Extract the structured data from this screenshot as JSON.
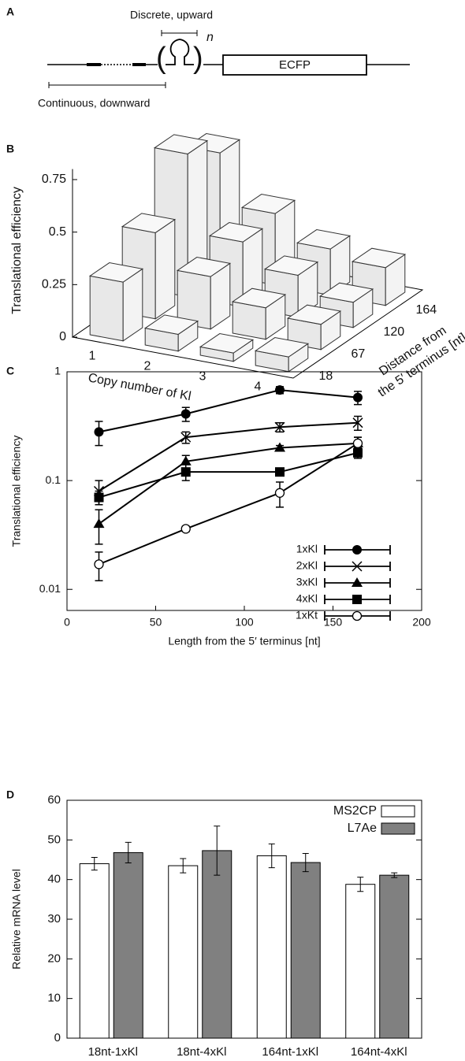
{
  "diagram": {
    "label": "A",
    "top_label": "Discrete, upward",
    "bottom_label": "Continuous, downward",
    "exponent": "n",
    "box_label": "ECFP"
  },
  "chart_data": [
    {
      "type": "bar3d",
      "panel_label": "B",
      "zlabel": "Translational efficiency",
      "xlabel": "Copy number of Kl",
      "depth_label": [
        "Distance from",
        "the 5′ terminus [nt]"
      ],
      "categories": [
        "1",
        "2",
        "3",
        "4"
      ],
      "color": "#e8e8e8",
      "series": [
        {
          "name": "18",
          "values": [
            0.28,
            0.08,
            0.04,
            0.07
          ]
        },
        {
          "name": "67",
          "values": [
            0.41,
            0.25,
            0.15,
            0.12
          ]
        },
        {
          "name": "120",
          "values": [
            0.68,
            0.31,
            0.2,
            0.12
          ]
        },
        {
          "name": "164",
          "values": [
            0.58,
            0.34,
            0.22,
            0.18
          ]
        }
      ],
      "zlim": [
        0,
        0.8
      ],
      "zticks": [
        0,
        0.25,
        0.5,
        0.75
      ]
    },
    {
      "type": "line",
      "panel_label": "C",
      "xlabel": "Length from the 5′ terminus [nt]",
      "ylabel": "Translational efficiency",
      "x": [
        18,
        67,
        120,
        164
      ],
      "log_y": true,
      "xlim": [
        0,
        200
      ],
      "xticks": [
        0,
        50,
        100,
        150,
        200
      ],
      "ylim": [
        0.0064,
        1
      ],
      "yticks": [
        0.01,
        0.1,
        1
      ],
      "series": [
        {
          "name": "1xKl",
          "color": "#000000",
          "marker": "circle",
          "values": [
            0.28,
            0.41,
            0.68,
            0.58
          ],
          "errors": [
            0.07,
            0.06,
            0.05,
            0.08
          ]
        },
        {
          "name": "2xKl",
          "color": "#000000",
          "marker": "cross",
          "values": [
            0.08,
            0.25,
            0.31,
            0.34
          ],
          "errors": [
            0.02,
            0.03,
            0.03,
            0.05
          ]
        },
        {
          "name": "3xKl",
          "color": "#000000",
          "marker": "triangle",
          "values": [
            0.04,
            0.15,
            0.2,
            0.22
          ],
          "errors": [
            0.014,
            0.02,
            0.01,
            0.03
          ]
        },
        {
          "name": "4xKl",
          "color": "#000000",
          "marker": "square",
          "values": [
            0.07,
            0.12,
            0.12,
            0.18
          ],
          "errors": [
            0.01,
            0.02,
            0.005,
            0.02
          ]
        },
        {
          "name": "1xKt",
          "color": "#000000",
          "marker": "open-circle",
          "values": [
            0.017,
            0.036,
            0.077,
            0.22
          ],
          "errors": [
            0.005,
            0.002,
            0.02,
            0.03
          ]
        }
      ],
      "legend": "lower-right"
    },
    {
      "type": "bar",
      "panel_label": "D",
      "ylabel": "Relative mRNA level",
      "categories": [
        "18nt-1xKl",
        "18nt-4xKl",
        "164nt-1xKl",
        "164nt-4xKl"
      ],
      "series": [
        {
          "name": "MS2CP",
          "color": "#ffffff",
          "values": [
            44,
            43.5,
            46,
            38.8
          ],
          "errors": [
            1.6,
            1.8,
            3,
            1.8
          ]
        },
        {
          "name": "L7Ae",
          "color": "#808080",
          "values": [
            46.8,
            47.3,
            44.3,
            41.1
          ],
          "errors": [
            2.6,
            6.2,
            2.3,
            0.6
          ]
        }
      ],
      "ylim": [
        0,
        60
      ],
      "yticks": [
        0,
        10,
        20,
        30,
        40,
        50,
        60
      ],
      "legend": "upper-right"
    }
  ]
}
